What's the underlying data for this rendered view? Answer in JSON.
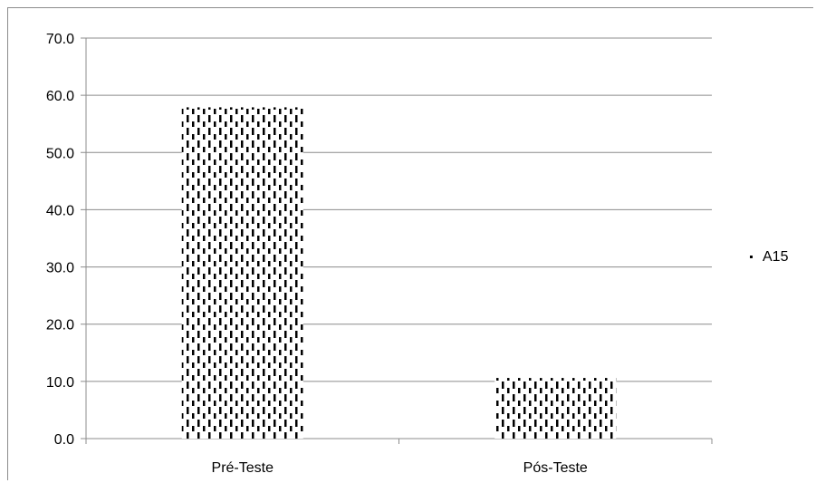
{
  "chart_data": {
    "type": "bar",
    "categories": [
      "Pré-Teste",
      "Pós-Teste"
    ],
    "series": [
      {
        "name": "A15",
        "values": [
          57.9,
          10.6
        ]
      }
    ],
    "ylim": [
      0,
      70
    ],
    "yticks": [
      "0.0",
      "10.0",
      "20.0",
      "30.0",
      "40.0",
      "50.0",
      "60.0",
      "70.0"
    ],
    "grid": true,
    "legend_position": "right",
    "bar_fill": "dashed-vertical-pattern",
    "colors": {
      "bar": "#000000",
      "grid": "#8c8c8c",
      "axis": "#8c8c8c"
    }
  }
}
